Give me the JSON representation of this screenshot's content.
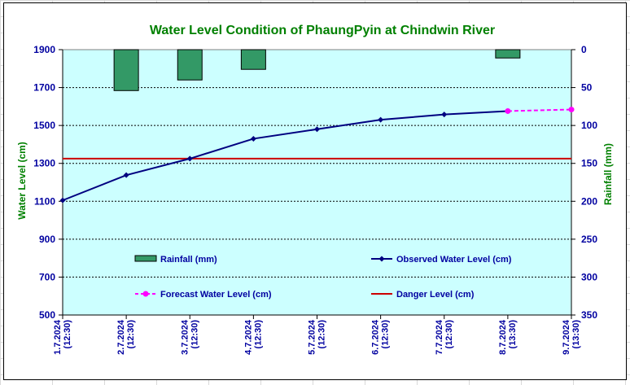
{
  "chart_data": {
    "type": "bar+line",
    "title": "Water Level Condition of PhaungPyin at Chindwin River",
    "ylabel_left": "Water Level (cm)",
    "ylabel_right": "Rainfall (mm)",
    "categories": [
      "1.7.2024 (12:30)",
      "2.7.2024 (12:30)",
      "3.7.2024 (12:30)",
      "4.7.2024 (12:30)",
      "5.7.2024 (12:30)",
      "6.7.2024 (12:30)",
      "7.7.2024 (12:30)",
      "8.7.2024 (13:30)",
      "9.7.2024 (13:30)"
    ],
    "ylim_left": [
      500,
      1900
    ],
    "yticks_left": [
      500,
      700,
      900,
      1100,
      1300,
      1500,
      1700,
      1900
    ],
    "ylim_right": [
      350,
      0
    ],
    "yticks_right": [
      0,
      50,
      100,
      150,
      200,
      250,
      300,
      350
    ],
    "series": [
      {
        "name": "Rainfall (mm)",
        "kind": "bar",
        "axis": "right",
        "color": "#339966",
        "values": [
          null,
          54,
          40,
          26,
          null,
          null,
          null,
          11,
          null
        ]
      },
      {
        "name": "Observed Water Level (cm)",
        "kind": "line",
        "axis": "left",
        "color": "#000080",
        "values": [
          1105,
          1238,
          1325,
          1430,
          1480,
          1530,
          1558,
          1576,
          null
        ]
      },
      {
        "name": "Forecast Water Level (cm)",
        "kind": "line-dashed",
        "axis": "left",
        "color": "#ff00ff",
        "values": [
          null,
          null,
          null,
          null,
          null,
          null,
          null,
          1576,
          1584
        ]
      },
      {
        "name": "Danger Level (cm)",
        "kind": "hline",
        "axis": "left",
        "color": "#cc0000",
        "value": 1325
      }
    ],
    "plot_background": "#ccffff",
    "grid": "horizontal dashed",
    "legend_position": "inside-bottom"
  }
}
